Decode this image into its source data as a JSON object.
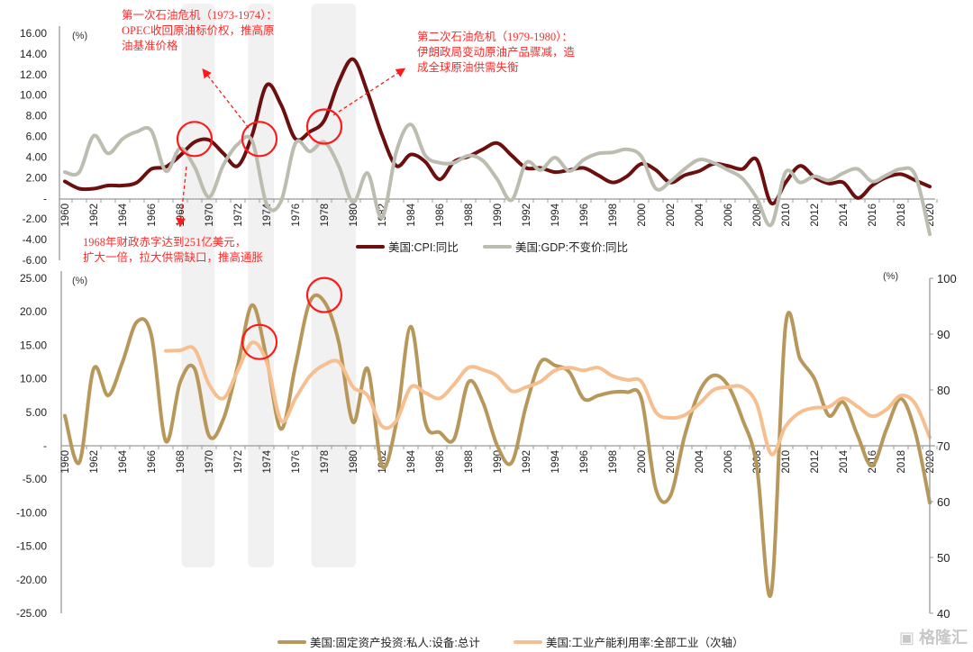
{
  "annotations": {
    "oil_crisis_1": [
      "第一次石油危机（1973-1974）：",
      "OPEC收回原油标价权，推高原",
      "油基准价格"
    ],
    "oil_crisis_2": [
      "第二次石油危机（1979-1980）：",
      "伊朗政局变动原油产品骤减，造",
      "成全球原油供需失衡"
    ],
    "deficit_1968": [
      "1968年财政赤字达到251亿美元，",
      "扩大一倍，拉大供需缺口，推高通胀"
    ]
  },
  "watermark": "格隆汇",
  "chart_data": [
    {
      "type": "line",
      "unit_label": "(%)",
      "ylim": [
        -6,
        16
      ],
      "yticks": [
        "16.00",
        "14.00",
        "12.00",
        "10.00",
        "8.00",
        "6.00",
        "4.00",
        "2.00",
        "-",
        "-2.00",
        "-4.00",
        "-6.00"
      ],
      "x": [
        1960,
        1961,
        1962,
        1963,
        1964,
        1965,
        1966,
        1967,
        1968,
        1969,
        1970,
        1971,
        1972,
        1973,
        1974,
        1975,
        1976,
        1977,
        1978,
        1979,
        1980,
        1981,
        1982,
        1983,
        1984,
        1985,
        1986,
        1987,
        1988,
        1989,
        1990,
        1991,
        1992,
        1993,
        1994,
        1995,
        1996,
        1997,
        1998,
        1999,
        2000,
        2001,
        2002,
        2003,
        2004,
        2005,
        2006,
        2007,
        2008,
        2009,
        2010,
        2011,
        2012,
        2013,
        2014,
        2015,
        2016,
        2017,
        2018,
        2019,
        2020
      ],
      "xtick_step": 2,
      "legend_position": "bottom",
      "series": [
        {
          "name": "美国:CPI:同比",
          "color": "#6b0f0f",
          "values": [
            1.7,
            1.0,
            1.0,
            1.3,
            1.3,
            1.6,
            2.9,
            3.1,
            4.2,
            5.5,
            5.7,
            4.4,
            3.2,
            6.2,
            11.0,
            9.1,
            5.8,
            6.5,
            7.6,
            11.3,
            13.5,
            10.3,
            6.2,
            3.2,
            4.3,
            3.6,
            1.9,
            3.6,
            4.1,
            4.8,
            5.4,
            4.2,
            3.0,
            3.0,
            2.6,
            2.8,
            3.0,
            2.3,
            1.6,
            2.2,
            3.4,
            2.8,
            1.6,
            2.3,
            2.7,
            3.4,
            3.2,
            2.9,
            3.8,
            -0.4,
            1.6,
            3.2,
            2.1,
            1.5,
            1.6,
            0.1,
            1.3,
            2.1,
            2.4,
            1.8,
            1.2
          ]
        },
        {
          "name": "美国:GDP:不变价:同比",
          "color": "#bcbcb0",
          "values": [
            2.6,
            2.6,
            6.1,
            4.4,
            5.8,
            6.5,
            6.6,
            2.7,
            4.9,
            3.1,
            0.2,
            3.3,
            5.3,
            5.6,
            -0.5,
            -0.2,
            5.4,
            4.6,
            5.5,
            3.2,
            -0.3,
            2.5,
            -1.8,
            4.6,
            7.2,
            4.2,
            3.5,
            3.5,
            4.2,
            3.7,
            1.9,
            -0.1,
            3.5,
            2.8,
            4.0,
            2.7,
            3.8,
            4.4,
            4.5,
            4.8,
            4.1,
            1.0,
            1.7,
            2.9,
            3.8,
            3.5,
            2.8,
            2.0,
            0.1,
            -2.5,
            2.6,
            1.6,
            2.2,
            1.8,
            2.5,
            2.9,
            1.7,
            2.3,
            2.9,
            2.3,
            -3.4
          ]
        }
      ],
      "highlights": [
        {
          "year": 1969,
          "value": 5.8
        },
        {
          "year": 1973.5,
          "value": 5.8
        },
        {
          "year": 1978,
          "value": 7.0
        }
      ],
      "shaded_periods": [
        [
          1968.1,
          1970.4
        ],
        [
          1972.7,
          1974.5
        ],
        [
          1977.1,
          1980.2
        ]
      ]
    },
    {
      "type": "line",
      "unit_label": "(%)",
      "unit_label_right": "(%)",
      "ylim": [
        -25,
        25
      ],
      "ylim_right": [
        40,
        100
      ],
      "yticks": [
        "25.00",
        "20.00",
        "15.00",
        "10.00",
        "5.00",
        "-",
        "-5.00",
        "-10.00",
        "-15.00",
        "-20.00",
        "-25.00"
      ],
      "yticks_right": [
        "100",
        "90",
        "80",
        "70",
        "60",
        "50",
        "40"
      ],
      "x": [
        1960,
        1961,
        1962,
        1963,
        1964,
        1965,
        1966,
        1967,
        1968,
        1969,
        1970,
        1971,
        1972,
        1973,
        1974,
        1975,
        1976,
        1977,
        1978,
        1979,
        1980,
        1981,
        1982,
        1983,
        1984,
        1985,
        1986,
        1987,
        1988,
        1989,
        1990,
        1991,
        1992,
        1993,
        1994,
        1995,
        1996,
        1997,
        1998,
        1999,
        2000,
        2001,
        2002,
        2003,
        2004,
        2005,
        2006,
        2007,
        2008,
        2009,
        2010,
        2011,
        2012,
        2013,
        2014,
        2015,
        2016,
        2017,
        2018,
        2019,
        2020
      ],
      "xtick_step": 2,
      "legend_position": "bottom",
      "series": [
        {
          "name": "美国:固定资产投资:私人:设备:总计",
          "color": "#b8975a",
          "axis": "left",
          "values": [
            4.5,
            -2.5,
            11.5,
            7.5,
            12.5,
            18.5,
            16.5,
            0.7,
            9.5,
            11.5,
            1.5,
            4.0,
            12.0,
            21.0,
            13.0,
            2.5,
            12.0,
            21.5,
            21.5,
            15.5,
            3.5,
            11.5,
            -3.0,
            3.5,
            17.8,
            3.5,
            2.0,
            1.0,
            9.5,
            6.5,
            0.0,
            -2.5,
            6.0,
            12.5,
            12.0,
            11.0,
            7.0,
            7.5,
            8.0,
            8.0,
            7.0,
            -6.5,
            -7.5,
            1.5,
            8.0,
            10.5,
            9.0,
            4.0,
            -3.0,
            -22.0,
            18.0,
            13.0,
            10.0,
            4.5,
            6.5,
            1.5,
            -3.0,
            2.5,
            7.0,
            2.0,
            -8.5
          ]
        },
        {
          "name": "美国:工业产能利用率:全部工业（次轴）",
          "color": "#f7bf8f",
          "axis": "right",
          "values": [
            null,
            null,
            null,
            null,
            null,
            null,
            null,
            87.0,
            87.1,
            87.3,
            81.0,
            78.5,
            83.5,
            88.5,
            85.0,
            74.5,
            78.5,
            82.5,
            84.5,
            85.0,
            80.5,
            79.0,
            73.5,
            74.5,
            80.5,
            79.5,
            78.5,
            81.0,
            84.0,
            83.6,
            82.5,
            79.8,
            80.5,
            81.5,
            83.5,
            84.0,
            83.5,
            84.0,
            82.5,
            81.8,
            81.5,
            76.0,
            75.0,
            75.5,
            77.5,
            80.0,
            80.5,
            80.5,
            77.5,
            68.5,
            73.5,
            76.0,
            76.8,
            77.0,
            78.5,
            77.0,
            75.3,
            76.5,
            79.0,
            77.5,
            71.5
          ]
        }
      ],
      "highlights": [
        {
          "year": 1973.5,
          "value": 15.5
        },
        {
          "year": 1978,
          "value": 22.5
        }
      ],
      "shaded_periods": [
        [
          1968.1,
          1970.4
        ],
        [
          1972.7,
          1974.5
        ],
        [
          1977.1,
          1980.2
        ]
      ]
    }
  ]
}
